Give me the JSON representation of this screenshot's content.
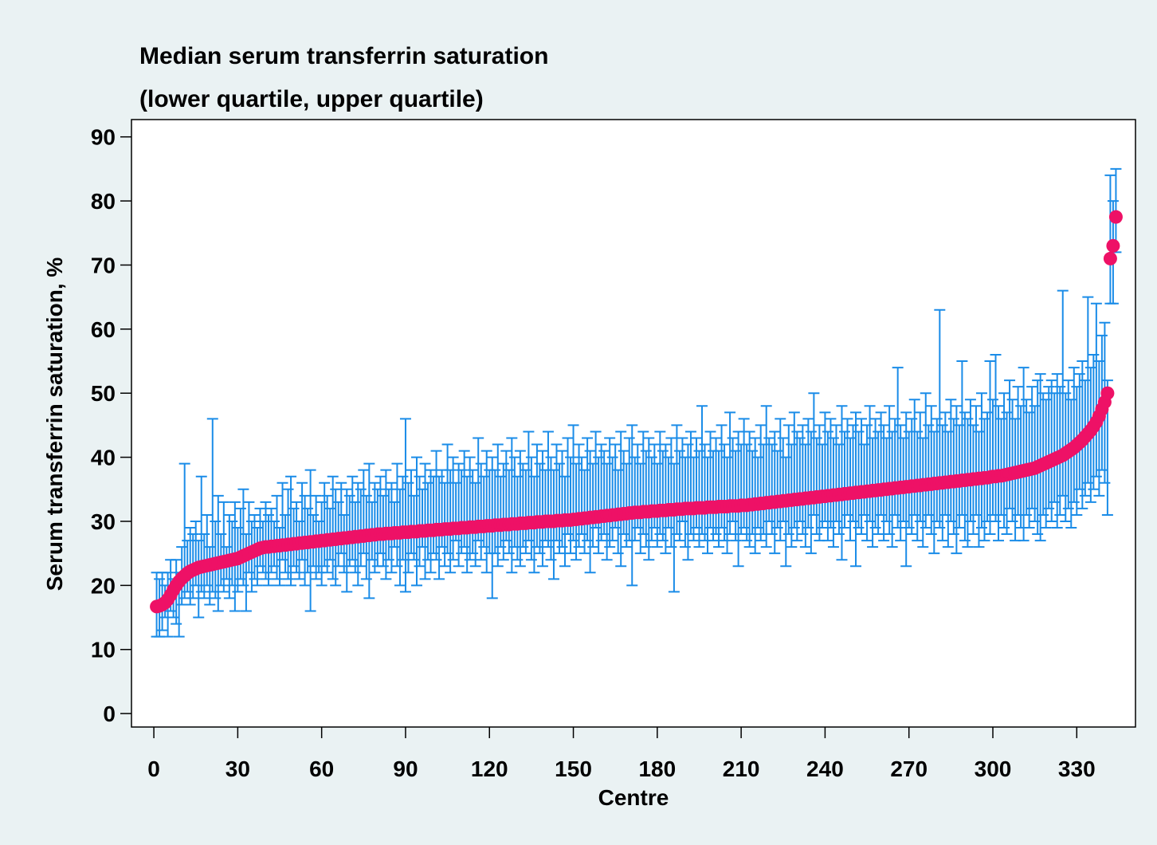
{
  "chart_data": {
    "type": "errorbar",
    "title": "Median serum transferrin saturation",
    "subtitle": "(lower quartile, upper quartile)",
    "x_label": "Centre",
    "y_label": "Serum transferrin saturation, %",
    "xlim": [
      -8,
      351
    ],
    "ylim": [
      -2.1,
      92.7
    ],
    "xticks": [
      0,
      30,
      60,
      90,
      120,
      150,
      180,
      210,
      240,
      270,
      300,
      330
    ],
    "yticks": [
      0,
      10,
      20,
      30,
      40,
      50,
      60,
      70,
      80,
      90
    ],
    "color": "#ee1166",
    "error_color": "#1a8ce8",
    "x": [
      1,
      2,
      3,
      4,
      5,
      6,
      7,
      8,
      9,
      10,
      11,
      12,
      13,
      14,
      15,
      16,
      17,
      18,
      19,
      20,
      21,
      22,
      23,
      24,
      25,
      26,
      27,
      28,
      29,
      30,
      31,
      32,
      33,
      34,
      35,
      36,
      37,
      38,
      39,
      40,
      41,
      42,
      43,
      44,
      45,
      46,
      47,
      48,
      49,
      50,
      51,
      52,
      53,
      54,
      55,
      56,
      57,
      58,
      59,
      60,
      61,
      62,
      63,
      64,
      65,
      66,
      67,
      68,
      69,
      70,
      71,
      72,
      73,
      74,
      75,
      76,
      77,
      78,
      79,
      80,
      81,
      82,
      83,
      84,
      85,
      86,
      87,
      88,
      89,
      90,
      91,
      92,
      93,
      94,
      95,
      96,
      97,
      98,
      99,
      100,
      101,
      102,
      103,
      104,
      105,
      106,
      107,
      108,
      109,
      110,
      111,
      112,
      113,
      114,
      115,
      116,
      117,
      118,
      119,
      120,
      121,
      122,
      123,
      124,
      125,
      126,
      127,
      128,
      129,
      130,
      131,
      132,
      133,
      134,
      135,
      136,
      137,
      138,
      139,
      140,
      141,
      142,
      143,
      144,
      145,
      146,
      147,
      148,
      149,
      150,
      151,
      152,
      153,
      154,
      155,
      156,
      157,
      158,
      159,
      160,
      161,
      162,
      163,
      164,
      165,
      166,
      167,
      168,
      169,
      170,
      171,
      172,
      173,
      174,
      175,
      176,
      177,
      178,
      179,
      180,
      181,
      182,
      183,
      184,
      185,
      186,
      187,
      188,
      189,
      190,
      191,
      192,
      193,
      194,
      195,
      196,
      197,
      198,
      199,
      200,
      201,
      202,
      203,
      204,
      205,
      206,
      207,
      208,
      209,
      210,
      211,
      212,
      213,
      214,
      215,
      216,
      217,
      218,
      219,
      220,
      221,
      222,
      223,
      224,
      225,
      226,
      227,
      228,
      229,
      230,
      231,
      232,
      233,
      234,
      235,
      236,
      237,
      238,
      239,
      240,
      241,
      242,
      243,
      244,
      245,
      246,
      247,
      248,
      249,
      250,
      251,
      252,
      253,
      254,
      255,
      256,
      257,
      258,
      259,
      260,
      261,
      262,
      263,
      264,
      265,
      266,
      267,
      268,
      269,
      270,
      271,
      272,
      273,
      274,
      275,
      276,
      277,
      278,
      279,
      280,
      281,
      282,
      283,
      284,
      285,
      286,
      287,
      288,
      289,
      290,
      291,
      292,
      293,
      294,
      295,
      296,
      297,
      298,
      299,
      300,
      301,
      302,
      303,
      304,
      305,
      306,
      307,
      308,
      309,
      310,
      311,
      312,
      313,
      314,
      315,
      316,
      317,
      318,
      319,
      320,
      321,
      322,
      323,
      324,
      325,
      326,
      327,
      328,
      329,
      330,
      331,
      332,
      333,
      334,
      335,
      336,
      337,
      338,
      339,
      340,
      341,
      342,
      343,
      344
    ],
    "values": [
      16.7,
      16.8,
      17.0,
      17.3,
      17.8,
      18.5,
      19.3,
      20.0,
      20.6,
      21.1,
      21.5,
      21.9,
      22.2,
      22.4,
      22.6,
      22.8,
      22.9,
      23.0,
      23.1,
      23.2,
      23.3,
      23.4,
      23.5,
      23.6,
      23.7,
      23.8,
      23.9,
      24.0,
      24.1,
      24.2,
      24.4,
      24.6,
      24.8,
      25.0,
      25.2,
      25.4,
      25.6,
      25.8,
      25.9,
      26.0,
      26.0,
      26.1,
      26.1,
      26.2,
      26.2,
      26.3,
      26.3,
      26.4,
      26.4,
      26.5,
      26.5,
      26.6,
      26.6,
      26.7,
      26.7,
      26.8,
      26.8,
      26.9,
      26.9,
      27.0,
      27.0,
      27.1,
      27.1,
      27.2,
      27.2,
      27.3,
      27.3,
      27.4,
      27.4,
      27.5,
      27.5,
      27.6,
      27.6,
      27.7,
      27.7,
      27.8,
      27.8,
      27.9,
      27.9,
      28.0,
      28.0,
      28.0,
      28.1,
      28.1,
      28.1,
      28.2,
      28.2,
      28.2,
      28.3,
      28.3,
      28.3,
      28.4,
      28.4,
      28.4,
      28.5,
      28.5,
      28.5,
      28.6,
      28.6,
      28.6,
      28.7,
      28.7,
      28.7,
      28.8,
      28.8,
      28.8,
      28.9,
      28.9,
      28.9,
      29.0,
      29.0,
      29.0,
      29.1,
      29.1,
      29.1,
      29.2,
      29.2,
      29.2,
      29.3,
      29.3,
      29.3,
      29.4,
      29.4,
      29.4,
      29.5,
      29.5,
      29.5,
      29.6,
      29.6,
      29.6,
      29.7,
      29.7,
      29.7,
      29.8,
      29.8,
      29.8,
      29.9,
      29.9,
      29.9,
      30.0,
      30.0,
      30.0,
      30.0,
      30.1,
      30.1,
      30.1,
      30.2,
      30.2,
      30.2,
      30.3,
      30.3,
      30.4,
      30.4,
      30.5,
      30.5,
      30.6,
      30.6,
      30.7,
      30.7,
      30.8,
      30.8,
      30.9,
      30.9,
      31.0,
      31.0,
      31.1,
      31.1,
      31.2,
      31.2,
      31.3,
      31.3,
      31.4,
      31.4,
      31.4,
      31.5,
      31.5,
      31.5,
      31.6,
      31.6,
      31.6,
      31.7,
      31.7,
      31.7,
      31.8,
      31.8,
      31.8,
      31.9,
      31.9,
      31.9,
      32.0,
      32.0,
      32.0,
      32.0,
      32.1,
      32.1,
      32.1,
      32.1,
      32.2,
      32.2,
      32.2,
      32.2,
      32.3,
      32.3,
      32.3,
      32.3,
      32.4,
      32.4,
      32.4,
      32.4,
      32.5,
      32.5,
      32.5,
      32.6,
      32.6,
      32.7,
      32.7,
      32.8,
      32.8,
      32.9,
      32.9,
      33.0,
      33.0,
      33.1,
      33.1,
      33.2,
      33.2,
      33.3,
      33.3,
      33.4,
      33.4,
      33.5,
      33.5,
      33.6,
      33.6,
      33.7,
      33.7,
      33.8,
      33.8,
      33.9,
      33.9,
      34.0,
      34.0,
      34.1,
      34.1,
      34.2,
      34.2,
      34.3,
      34.3,
      34.4,
      34.4,
      34.5,
      34.5,
      34.6,
      34.6,
      34.7,
      34.7,
      34.8,
      34.8,
      34.9,
      34.9,
      35.0,
      35.0,
      35.1,
      35.1,
      35.2,
      35.2,
      35.3,
      35.3,
      35.4,
      35.4,
      35.5,
      35.5,
      35.6,
      35.6,
      35.7,
      35.7,
      35.8,
      35.8,
      35.9,
      35.9,
      36.0,
      36.0,
      36.1,
      36.1,
      36.2,
      36.2,
      36.3,
      36.3,
      36.4,
      36.4,
      36.5,
      36.5,
      36.6,
      36.6,
      36.7,
      36.7,
      36.8,
      36.8,
      36.9,
      37.0,
      37.0,
      37.1,
      37.1,
      37.2,
      37.3,
      37.4,
      37.5,
      37.6,
      37.7,
      37.8,
      37.9,
      38.0,
      38.1,
      38.2,
      38.3,
      38.5,
      38.7,
      38.9,
      39.1,
      39.3,
      39.5,
      39.7,
      39.9,
      40.1,
      40.3,
      40.6,
      40.9,
      41.2,
      41.5,
      41.9,
      42.3,
      42.7,
      43.2,
      43.7,
      44.2,
      44.8,
      45.5,
      46.4,
      47.5,
      48.6,
      50.0,
      71.0,
      73.0,
      77.5
    ],
    "lower": [
      12,
      12,
      13,
      15,
      12,
      16,
      15,
      14,
      12,
      17,
      18,
      19,
      17,
      18,
      20,
      15,
      19,
      18,
      20,
      17,
      19,
      18,
      16,
      20,
      19,
      21,
      18,
      20,
      16,
      19,
      21,
      20,
      16,
      22,
      19,
      21,
      20,
      23,
      22,
      21,
      20,
      22,
      23,
      21,
      20,
      24,
      22,
      21,
      20,
      23,
      22,
      21,
      24,
      20,
      22,
      16,
      23,
      21,
      22,
      20,
      23,
      22,
      24,
      21,
      20,
      23,
      25,
      22,
      19,
      23,
      24,
      22,
      20,
      23,
      25,
      21,
      18,
      24,
      22,
      23,
      25,
      23,
      21,
      24,
      22,
      26,
      23,
      20,
      24,
      19,
      22,
      25,
      24,
      20,
      23,
      26,
      21,
      24,
      22,
      25,
      24,
      21,
      26,
      23,
      25,
      22,
      24,
      27,
      23,
      25,
      26,
      22,
      24,
      25,
      23,
      27,
      24,
      26,
      22,
      25,
      18,
      25,
      23,
      26,
      24,
      27,
      25,
      22,
      26,
      24,
      23,
      26,
      25,
      27,
      24,
      22,
      26,
      25,
      23,
      27,
      26,
      24,
      21,
      27,
      25,
      26,
      23,
      28,
      25,
      27,
      24,
      26,
      28,
      25,
      27,
      22,
      26,
      29,
      25,
      27,
      28,
      24,
      26,
      27,
      29,
      25,
      23,
      28,
      26,
      27,
      20,
      27,
      29,
      25,
      28,
      26,
      24,
      27,
      29,
      26,
      28,
      27,
      25,
      29,
      26,
      19,
      28,
      27,
      30,
      26,
      24,
      28,
      27,
      29,
      26,
      28,
      27,
      25,
      29,
      27,
      28,
      26,
      29,
      27,
      25,
      28,
      30,
      27,
      23,
      28,
      29,
      27,
      26,
      28,
      25,
      29,
      27,
      28,
      26,
      30,
      28,
      25,
      29,
      27,
      30,
      23,
      28,
      26,
      29,
      27,
      30,
      28,
      26,
      29,
      25,
      31,
      28,
      27,
      29,
      30,
      27,
      29,
      26,
      30,
      28,
      24,
      29,
      31,
      27,
      30,
      23,
      29,
      28,
      31,
      27,
      30,
      26,
      29,
      28,
      31,
      27,
      30,
      28,
      26,
      31,
      29,
      27,
      30,
      23,
      29,
      28,
      31,
      27,
      30,
      26,
      29,
      31,
      28,
      25,
      30,
      29,
      27,
      31,
      26,
      30,
      28,
      25,
      29,
      31,
      27,
      26,
      30,
      28,
      31,
      26,
      29,
      27,
      30,
      28,
      31,
      30,
      27,
      31,
      29,
      28,
      32,
      30,
      27,
      31,
      29,
      27,
      31,
      29,
      32,
      30,
      28,
      27,
      31,
      29,
      32,
      30,
      33,
      29,
      31,
      34,
      30,
      32,
      29,
      33,
      31,
      35,
      32,
      34,
      36,
      33,
      35,
      37,
      34,
      38,
      36,
      31,
      64,
      64,
      72
    ],
    "upper": [
      22,
      21,
      22,
      20,
      22,
      24,
      21,
      24,
      22,
      26,
      39,
      27,
      29,
      28,
      30,
      27,
      37,
      28,
      31,
      26,
      46,
      30,
      34,
      28,
      33,
      26,
      31,
      30,
      33,
      29,
      32,
      35,
      28,
      33,
      30,
      31,
      29,
      32,
      30,
      33,
      31,
      32,
      30,
      34,
      29,
      36,
      31,
      35,
      37,
      32,
      33,
      30,
      36,
      34,
      32,
      38,
      31,
      34,
      30,
      33,
      36,
      34,
      32,
      37,
      35,
      33,
      36,
      31,
      35,
      34,
      37,
      33,
      36,
      35,
      38,
      34,
      39,
      33,
      36,
      35,
      37,
      34,
      38,
      35,
      36,
      33,
      39,
      35,
      37,
      46,
      36,
      38,
      34,
      40,
      37,
      35,
      39,
      36,
      38,
      37,
      41,
      37,
      38,
      36,
      42,
      38,
      40,
      36,
      39,
      38,
      41,
      37,
      40,
      38,
      36,
      43,
      39,
      37,
      41,
      38,
      40,
      38,
      42,
      37,
      39,
      41,
      38,
      43,
      40,
      37,
      41,
      39,
      38,
      44,
      40,
      37,
      42,
      39,
      41,
      38,
      44,
      40,
      38,
      42,
      39,
      41,
      37,
      43,
      40,
      45,
      39,
      42,
      40,
      38,
      43,
      41,
      39,
      44,
      40,
      42,
      41,
      39,
      43,
      40,
      42,
      38,
      44,
      41,
      39,
      43,
      45,
      40,
      42,
      39,
      44,
      41,
      43,
      40,
      42,
      39,
      44,
      41,
      42,
      40,
      43,
      39,
      45,
      41,
      43,
      40,
      42,
      44,
      40,
      43,
      41,
      48,
      42,
      40,
      44,
      41,
      43,
      41,
      45,
      42,
      40,
      47,
      43,
      41,
      44,
      42,
      46,
      42,
      44,
      41,
      43,
      40,
      45,
      42,
      48,
      43,
      42,
      44,
      41,
      46,
      43,
      40,
      45,
      42,
      47,
      44,
      43,
      45,
      42,
      46,
      44,
      50,
      43,
      45,
      42,
      47,
      44,
      46,
      43,
      45,
      42,
      48,
      44,
      46,
      43,
      45,
      47,
      44,
      46,
      42,
      45,
      48,
      43,
      46,
      44,
      47,
      45,
      43,
      48,
      44,
      46,
      54,
      45,
      43,
      47,
      44,
      46,
      49,
      44,
      47,
      43,
      50,
      45,
      48,
      44,
      46,
      63,
      45,
      47,
      44,
      49,
      46,
      48,
      45,
      55,
      47,
      46,
      49,
      45,
      48,
      44,
      50,
      46,
      47,
      55,
      49,
      56,
      48,
      46,
      50,
      47,
      52,
      49,
      46,
      51,
      48,
      54,
      49,
      47,
      51,
      48,
      52,
      53,
      50,
      49,
      51,
      52,
      50,
      53,
      51,
      66,
      50,
      52,
      49,
      54,
      51,
      53,
      55,
      52,
      65,
      54,
      56,
      64,
      55,
      59,
      61,
      52,
      84,
      80,
      85
    ]
  }
}
